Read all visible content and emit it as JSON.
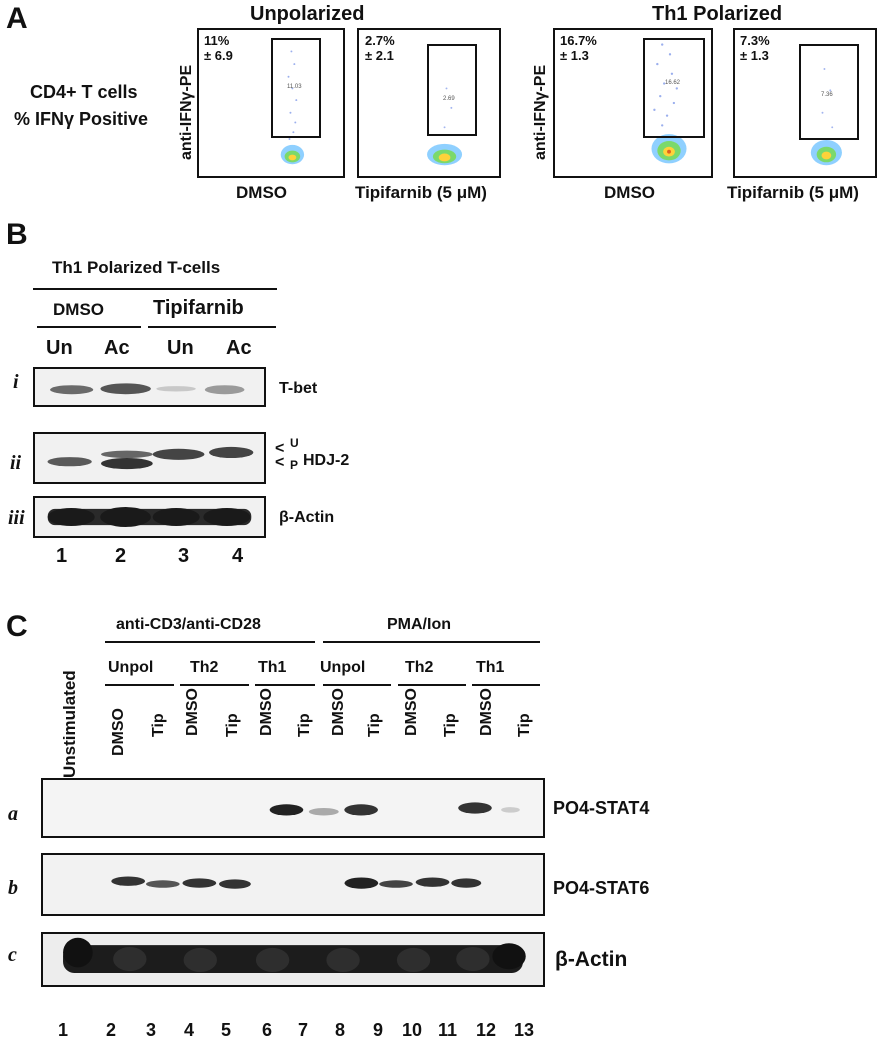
{
  "panel_letters": {
    "a": "A",
    "b": "B",
    "c": "C"
  },
  "panel_a": {
    "row_label_1": "CD4+ T cells",
    "row_label_2": "% IFNγ Positive",
    "y_axis_label": "anti-IFNγ-PE",
    "groups": [
      {
        "title": "Unpolarized",
        "plots": [
          {
            "label": "DMSO",
            "pct": "11%",
            "sd": "± 6.9",
            "gate_pct": "11.03"
          },
          {
            "label": "Tipifarnib (5 μM)",
            "pct": "2.7%",
            "sd": "± 2.1",
            "gate_pct": "2.69"
          }
        ]
      },
      {
        "title": "Th1 Polarized",
        "plots": [
          {
            "label": "DMSO",
            "pct": "16.7%",
            "sd": "± 1.3",
            "gate_pct": "16.62"
          },
          {
            "label": "Tipifarnib (5 μM)",
            "pct": "7.3%",
            "sd": "± 1.3",
            "gate_pct": "7.36"
          }
        ]
      }
    ]
  },
  "panel_b": {
    "header": "Th1 Polarized T-cells",
    "treatments": [
      "DMSO",
      "Tipifarnib"
    ],
    "lanes": [
      "Un",
      "Ac",
      "Un",
      "Ac"
    ],
    "lane_numbers": [
      "1",
      "2",
      "3",
      "4"
    ],
    "rows": [
      {
        "roman": "i",
        "label": "T-bet"
      },
      {
        "roman": "ii",
        "label": "HDJ-2",
        "marker_upper": "U",
        "marker_lower": "P"
      },
      {
        "roman": "iii",
        "label": "β-Actin"
      }
    ]
  },
  "panel_c": {
    "unstim_label": "Unstimulated",
    "stim_groups": [
      "anti-CD3/anti-CD28",
      "PMA/Ion"
    ],
    "subgroups": [
      "Unpol",
      "Th2",
      "Th1",
      "Unpol",
      "Th2",
      "Th1"
    ],
    "lane_treatments": [
      "DMSO",
      "Tip",
      "DMSO",
      "Tip",
      "DMSO",
      "Tip",
      "DMSO",
      "Tip",
      "DMSO",
      "Tip",
      "DMSO",
      "Tip"
    ],
    "lane_numbers": [
      "1",
      "2",
      "3",
      "4",
      "5",
      "6",
      "7",
      "8",
      "9",
      "10",
      "11",
      "12",
      "13"
    ],
    "rows": [
      {
        "letter": "a",
        "label": "PO4-STAT4"
      },
      {
        "letter": "b",
        "label": "PO4-STAT6"
      },
      {
        "letter": "c",
        "label": "β-Actin"
      }
    ]
  }
}
